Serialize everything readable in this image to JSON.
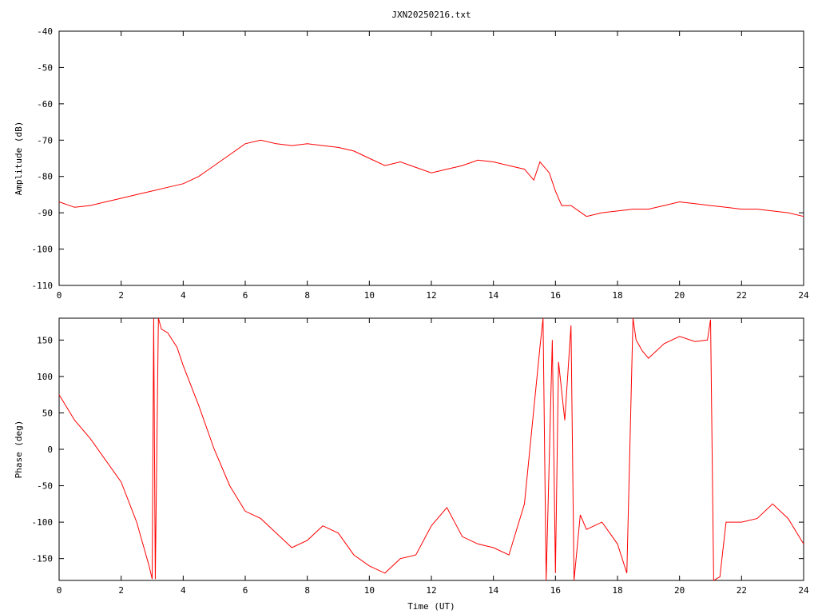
{
  "chart_data": [
    {
      "type": "line",
      "title": "JXN20250216.txt",
      "xlabel": "",
      "ylabel": "Amplitude (dB)",
      "xlim": [
        0,
        24
      ],
      "ylim": [
        -110,
        -40
      ],
      "x_ticks": [
        "0",
        "2",
        "4",
        "6",
        "8",
        "10",
        "12",
        "14",
        "16",
        "18",
        "20",
        "22",
        "24"
      ],
      "y_ticks": [
        "-40",
        "-50",
        "-60",
        "-70",
        "-80",
        "-90",
        "-100",
        "-110"
      ],
      "color": "#ff0000",
      "series": [
        {
          "x": [
            0,
            0.5,
            1,
            1.5,
            2,
            2.5,
            3,
            3.5,
            4,
            4.5,
            5,
            5.5,
            6,
            6.5,
            7,
            7.5,
            8,
            8.5,
            9,
            9.5,
            10,
            10.5,
            11,
            11.5,
            12,
            12.5,
            13,
            13.5,
            14,
            14.5,
            15,
            15.3,
            15.5,
            15.8,
            16,
            16.2,
            16.5,
            17,
            17.5,
            18,
            18.5,
            19,
            19.5,
            20,
            20.5,
            21,
            21.5,
            22,
            22.5,
            23,
            23.5,
            24
          ],
          "y": [
            -87,
            -88.5,
            -88,
            -87,
            -86,
            -85,
            -84,
            -83,
            -82,
            -80,
            -77,
            -74,
            -71,
            -70,
            -71,
            -71.5,
            -71,
            -71.5,
            -72,
            -73,
            -75,
            -77,
            -76,
            -77.5,
            -79,
            -78,
            -77,
            -75.5,
            -76,
            -77,
            -78,
            -81,
            -76,
            -79,
            -84,
            -88,
            -88,
            -91,
            -90,
            -89.5,
            -89,
            -89,
            -88,
            -87,
            -87.5,
            -88,
            -88.5,
            -89,
            -89,
            -89.5,
            -90,
            -91
          ]
        }
      ]
    },
    {
      "type": "line",
      "title": "",
      "xlabel": "Time (UT)",
      "ylabel": "Phase (deg)",
      "xlim": [
        0,
        24
      ],
      "ylim": [
        -180,
        180
      ],
      "x_ticks": [
        "0",
        "2",
        "4",
        "6",
        "8",
        "10",
        "12",
        "14",
        "16",
        "18",
        "20",
        "22",
        "24"
      ],
      "y_ticks": [
        "150",
        "100",
        "50",
        "0",
        "-50",
        "-100",
        "-150"
      ],
      "color": "#ff0000",
      "series": [
        {
          "x": [
            0,
            0.5,
            1,
            1.5,
            2,
            2.5,
            2.9,
            3.0,
            3.05,
            3.1,
            3.2,
            3.3,
            3.5,
            3.8,
            4,
            4.5,
            5,
            5.5,
            6,
            6.5,
            7,
            7.5,
            8,
            8.5,
            9,
            9.5,
            10,
            10.5,
            11,
            11.5,
            12,
            12.5,
            13,
            13.5,
            14,
            14.5,
            15,
            15.5,
            15.6,
            15.7,
            15.9,
            16.0,
            16.1,
            16.3,
            16.5,
            16.6,
            16.8,
            17,
            17.5,
            18,
            18.3,
            18.5,
            18.6,
            18.8,
            19,
            19.5,
            20,
            20.5,
            20.9,
            21.0,
            21.1,
            21.3,
            21.5,
            22,
            22.5,
            23,
            23.5,
            24
          ],
          "y": [
            75,
            40,
            15,
            -15,
            -45,
            -100,
            -160,
            -178,
            180,
            -178,
            180,
            165,
            160,
            140,
            115,
            60,
            0,
            -50,
            -85,
            -95,
            -115,
            -135,
            -125,
            -105,
            -115,
            -145,
            -160,
            -170,
            -150,
            -145,
            -105,
            -80,
            -120,
            -130,
            -135,
            -145,
            -75,
            140,
            180,
            -180,
            150,
            -170,
            120,
            40,
            170,
            -180,
            -90,
            -110,
            -100,
            -130,
            -170,
            180,
            150,
            135,
            125,
            145,
            155,
            148,
            150,
            178,
            -180,
            -175,
            -100,
            -100,
            -95,
            -75,
            -95,
            -130
          ]
        }
      ]
    }
  ]
}
